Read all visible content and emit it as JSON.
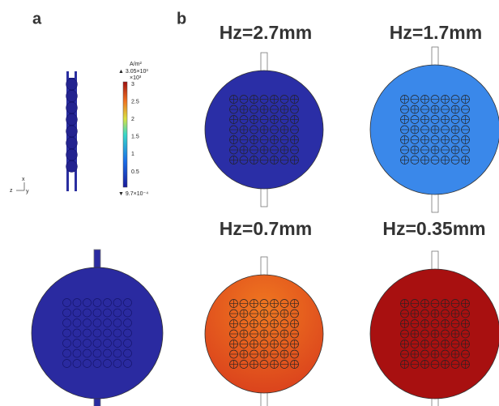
{
  "panel_a": {
    "label": "a",
    "colorbar": {
      "unit": "A/m²",
      "max": "▲ 3.05×10³",
      "scale": "×10³",
      "ticks": [
        "3",
        "2.5",
        "2",
        "1.5",
        "1",
        "0.5"
      ],
      "min": "▼ 9.7×10⁻⁴"
    },
    "axes": {
      "x": "x",
      "z": "z",
      "y": "y"
    }
  },
  "panel_b": {
    "label": "b",
    "titles": [
      "Hz=2.7mm",
      "Hz=1.7mm",
      "Hz=0.7mm",
      "Hz=0.35mm"
    ]
  }
}
